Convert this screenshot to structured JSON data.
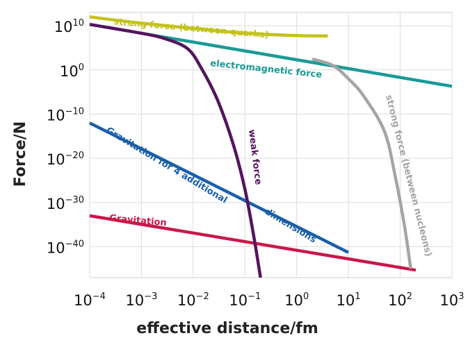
{
  "chart_data": {
    "type": "line",
    "xlabel": "effective distance/fm",
    "ylabel": "Force/N",
    "x_scale": "log",
    "y_scale": "log",
    "xlim": [
      0.0001,
      1000
    ],
    "ylim": [
      1e-47,
      10000000000000.0
    ],
    "grid": true,
    "x_ticks": [
      {
        "base": "10",
        "exp": "−4"
      },
      {
        "base": "10",
        "exp": "−3"
      },
      {
        "base": "10",
        "exp": "−2"
      },
      {
        "base": "10",
        "exp": "−1"
      },
      {
        "base": "10",
        "exp": "0"
      },
      {
        "base": "10",
        "exp": "1"
      },
      {
        "base": "10",
        "exp": "2"
      },
      {
        "base": "10",
        "exp": "3"
      }
    ],
    "y_ticks": [
      {
        "base": "10",
        "exp": "10"
      },
      {
        "base": "10",
        "exp": "0"
      },
      {
        "base": "10",
        "exp": "−10"
      },
      {
        "base": "10",
        "exp": "−20"
      },
      {
        "base": "10",
        "exp": "−30"
      },
      {
        "base": "10",
        "exp": "−40"
      }
    ],
    "series": [
      {
        "label": "strong force (between quarks)",
        "color": "#c4c21e",
        "points": [
          [
            0.0001,
            1000000000000.0
          ],
          [
            0.0003,
            200000000000.0
          ],
          [
            0.001,
            40000000000.0
          ],
          [
            0.003,
            10000000000.0
          ],
          [
            0.01,
            2500000000.0
          ],
          [
            0.05,
            400000000.0
          ],
          [
            0.2,
            130000000.0
          ],
          [
            1,
            60000000.0
          ],
          [
            4,
            50000000.0
          ]
        ]
      },
      {
        "label": "electromagnetic force",
        "color": "#1a9a96",
        "points": [
          [
            0.0001,
            20000000000.0
          ],
          [
            1000,
            0.0002
          ]
        ]
      },
      {
        "label": "weak force",
        "color": "#55145e",
        "points": [
          [
            0.0001,
            20000000000.0
          ],
          [
            0.001,
            200000000.0
          ],
          [
            0.003,
            10000000.0
          ],
          [
            0.008,
            50000.0
          ],
          [
            0.015,
            1.0
          ],
          [
            0.03,
            1e-07
          ],
          [
            0.06,
            1e-17
          ],
          [
            0.1,
            1e-27
          ],
          [
            0.15,
            1e-38
          ],
          [
            0.2,
            1e-47
          ]
        ]
      },
      {
        "label": "strong force (between nucleons)",
        "color": "#a5a5a5",
        "points": [
          [
            2,
            300.0
          ],
          [
            5,
            10.0
          ],
          [
            10,
            0.01
          ],
          [
            20,
            1e-06
          ],
          [
            50,
            1e-14
          ],
          [
            80,
            1e-24
          ],
          [
            120,
            1e-35
          ],
          [
            160,
            1e-45
          ]
        ]
      },
      {
        "label_lines": [
          "Gravitation for 4 additional",
          "dimensions"
        ],
        "color": "#1a5fa8",
        "points": [
          [
            0.0001,
            1e-12
          ],
          [
            10,
            5e-42
          ]
        ]
      },
      {
        "label": "Gravitation",
        "color": "#c9184a",
        "points": [
          [
            0.0001,
            1e-33
          ],
          [
            200,
            5e-46
          ]
        ]
      }
    ]
  }
}
